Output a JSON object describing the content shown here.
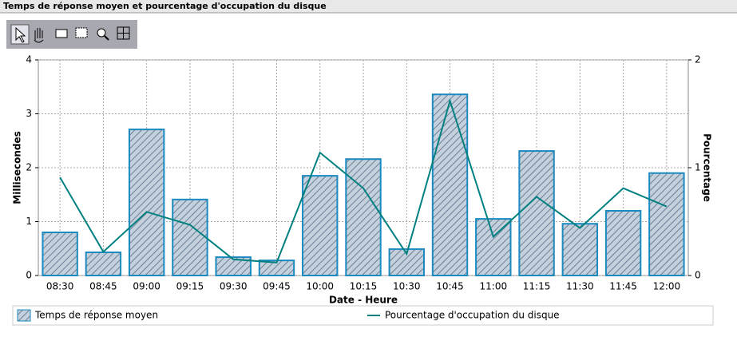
{
  "chart_data": {
    "type": "bar",
    "title": "Temps de réponse moyen et pourcentage d'occupation du disque",
    "x_label": "Date - Heure",
    "y_label": "Millisecondes",
    "y2_label": "Pourcentage",
    "categories": [
      "08:30",
      "08:45",
      "09:00",
      "09:15",
      "09:30",
      "09:45",
      "10:00",
      "10:15",
      "10:30",
      "10:45",
      "11:00",
      "11:15",
      "11:30",
      "11:45",
      "12:00"
    ],
    "series": [
      {
        "name": "Temps de réponse moyen",
        "type": "bar",
        "axis": "y",
        "color": "#1a8ac0",
        "values": [
          0.8,
          0.43,
          2.71,
          1.41,
          0.34,
          0.28,
          1.85,
          2.16,
          0.49,
          3.36,
          1.05,
          2.31,
          0.96,
          1.2,
          1.9
        ]
      },
      {
        "name": "Pourcentage d'occupation du disque",
        "type": "line",
        "axis": "y2",
        "color": "#008080",
        "values": [
          0.91,
          0.22,
          0.59,
          0.47,
          0.15,
          0.12,
          1.14,
          0.81,
          0.2,
          1.62,
          0.36,
          0.73,
          0.44,
          0.81,
          0.64
        ]
      }
    ],
    "ylim": [
      0,
      4
    ],
    "yticks": [
      0,
      1,
      2,
      3,
      4
    ],
    "y2lim": [
      0,
      2
    ],
    "y2ticks": [
      0,
      1,
      2
    ],
    "grid": true,
    "legend": "bottom"
  }
}
